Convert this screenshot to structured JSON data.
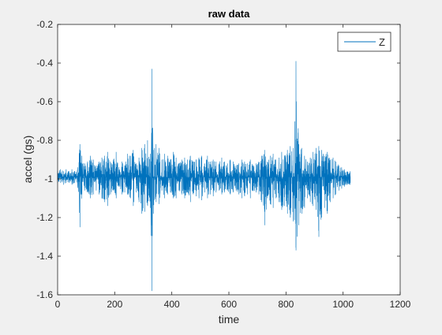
{
  "chart_data": {
    "type": "line",
    "title": "raw data",
    "xlabel": "time",
    "ylabel": "accel (gs)",
    "xlim": [
      0,
      1200
    ],
    "ylim": [
      -1.6,
      -0.2
    ],
    "x_ticks": [
      0,
      200,
      400,
      600,
      800,
      1000,
      1200
    ],
    "x_tick_labels": [
      "0",
      "200",
      "400",
      "600",
      "800",
      "1000",
      "1200"
    ],
    "y_ticks": [
      -0.2,
      -0.4,
      -0.6,
      -0.8,
      -1.0,
      -1.2,
      -1.4,
      -1.6
    ],
    "y_tick_labels": [
      "-0.2",
      "-0.4",
      "-0.6",
      "-0.8",
      "-1",
      "-1.2",
      "-1.4",
      "-1.6"
    ],
    "grid": false,
    "legend": {
      "position": "top-right",
      "entries": [
        "Z"
      ]
    },
    "series": [
      {
        "name": "Z",
        "color": "#0072BD",
        "baseline": -0.99,
        "x": [
          0,
          10,
          20,
          30,
          40,
          50,
          60,
          70,
          78,
          85,
          95,
          105,
          115,
          125,
          135,
          145,
          155,
          165,
          175,
          185,
          195,
          205,
          215,
          225,
          235,
          245,
          255,
          265,
          275,
          285,
          295,
          305,
          315,
          325,
          330,
          335,
          345,
          355,
          365,
          375,
          385,
          395,
          405,
          415,
          425,
          435,
          445,
          455,
          465,
          475,
          485,
          495,
          505,
          515,
          525,
          535,
          545,
          555,
          565,
          575,
          585,
          595,
          605,
          615,
          625,
          635,
          645,
          655,
          665,
          675,
          685,
          695,
          705,
          715,
          725,
          735,
          745,
          755,
          765,
          775,
          785,
          795,
          805,
          815,
          825,
          835,
          845,
          855,
          865,
          875,
          885,
          895,
          905,
          915,
          925,
          935,
          945,
          955,
          965,
          975,
          985,
          995,
          1005,
          1015,
          1025
        ],
        "y_max": [
          -0.96,
          -0.95,
          -0.96,
          -0.95,
          -0.96,
          -0.95,
          -0.96,
          -0.94,
          -0.82,
          -0.88,
          -0.92,
          -0.91,
          -0.88,
          -0.9,
          -0.93,
          -0.91,
          -0.89,
          -0.88,
          -0.86,
          -0.91,
          -0.9,
          -0.86,
          -0.94,
          -0.91,
          -0.93,
          -0.87,
          -0.88,
          -0.85,
          -0.92,
          -0.89,
          -0.84,
          -0.82,
          -0.8,
          -0.87,
          -0.43,
          -0.85,
          -0.82,
          -0.84,
          -0.9,
          -0.87,
          -0.88,
          -0.9,
          -0.86,
          -0.89,
          -0.92,
          -0.9,
          -0.89,
          -0.9,
          -0.88,
          -0.91,
          -0.9,
          -0.89,
          -0.88,
          -0.92,
          -0.88,
          -0.91,
          -0.9,
          -0.91,
          -0.92,
          -0.89,
          -0.91,
          -0.92,
          -0.9,
          -0.91,
          -0.93,
          -0.92,
          -0.9,
          -0.91,
          -0.92,
          -0.9,
          -0.93,
          -0.92,
          -0.91,
          -0.88,
          -0.85,
          -0.91,
          -0.88,
          -0.87,
          -0.9,
          -0.89,
          -0.86,
          -0.88,
          -0.85,
          -0.83,
          -0.84,
          -0.39,
          -0.82,
          -0.84,
          -0.88,
          -0.91,
          -0.89,
          -0.86,
          -0.84,
          -0.83,
          -0.85,
          -0.88,
          -0.86,
          -0.9,
          -0.89,
          -0.91,
          -0.93,
          -0.94,
          -0.95,
          -0.96,
          -0.96
        ],
        "y_min": [
          -1.02,
          -1.02,
          -1.03,
          -1.02,
          -1.02,
          -1.03,
          -1.02,
          -1.04,
          -1.25,
          -1.08,
          -1.06,
          -1.07,
          -1.1,
          -1.08,
          -1.06,
          -1.08,
          -1.1,
          -1.12,
          -1.14,
          -1.08,
          -1.06,
          -1.1,
          -1.04,
          -1.08,
          -1.07,
          -1.08,
          -1.1,
          -1.14,
          -1.07,
          -1.12,
          -1.18,
          -1.17,
          -1.14,
          -1.15,
          -1.58,
          -1.18,
          -1.12,
          -1.13,
          -1.06,
          -1.1,
          -1.08,
          -1.07,
          -1.1,
          -1.1,
          -1.06,
          -1.08,
          -1.1,
          -1.07,
          -1.12,
          -1.08,
          -1.09,
          -1.1,
          -1.11,
          -1.07,
          -1.1,
          -1.08,
          -1.09,
          -1.07,
          -1.06,
          -1.08,
          -1.07,
          -1.06,
          -1.08,
          -1.07,
          -1.06,
          -1.08,
          -1.1,
          -1.09,
          -1.08,
          -1.1,
          -1.06,
          -1.07,
          -1.08,
          -1.12,
          -1.24,
          -1.1,
          -1.13,
          -1.15,
          -1.1,
          -1.12,
          -1.16,
          -1.14,
          -1.18,
          -1.2,
          -1.22,
          -1.37,
          -1.24,
          -1.18,
          -1.15,
          -1.1,
          -1.12,
          -1.14,
          -1.16,
          -1.3,
          -1.2,
          -1.15,
          -1.18,
          -1.12,
          -1.1,
          -1.08,
          -1.06,
          -1.05,
          -1.04,
          -1.03,
          -1.03
        ]
      }
    ]
  }
}
